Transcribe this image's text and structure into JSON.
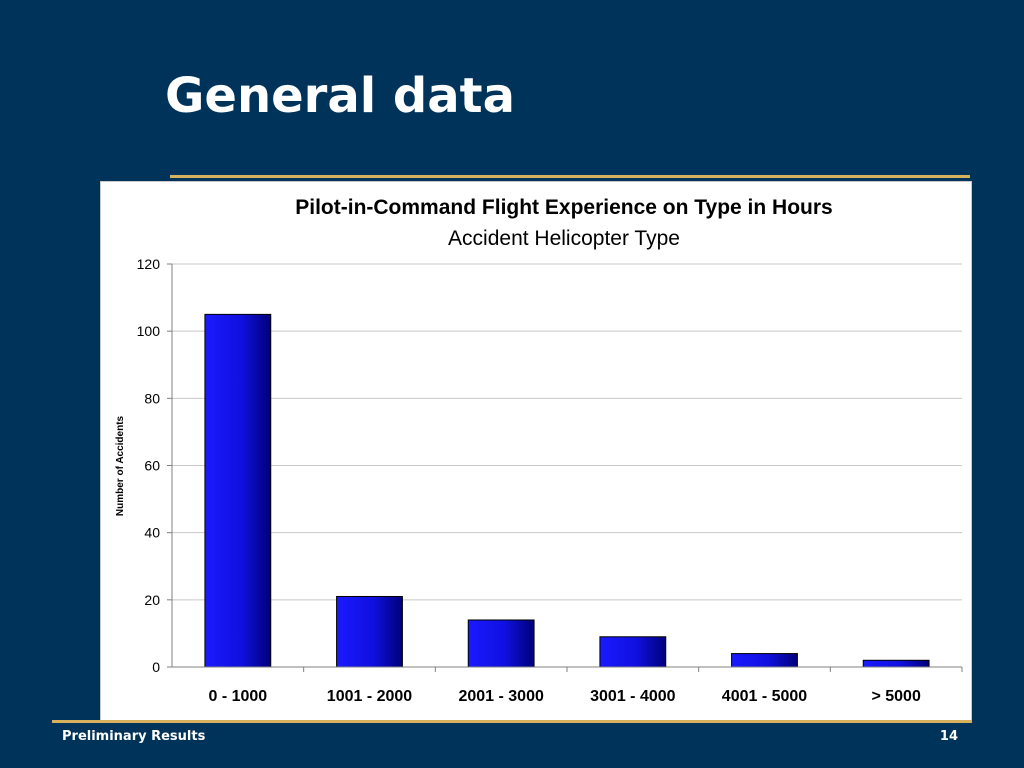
{
  "slide": {
    "title": "General data",
    "footer_left": "Preliminary Results",
    "page_number": "14"
  },
  "chart_data": {
    "type": "bar",
    "title": "Pilot-in-Command Flight Experience on Type in Hours",
    "subtitle": "Accident Helicopter Type",
    "xlabel": "",
    "ylabel": "Number of Accidents",
    "categories": [
      "0 - 1000",
      "1001 - 2000",
      "2001 - 3000",
      "3001 - 4000",
      "4001 - 5000",
      "> 5000"
    ],
    "values": [
      105,
      21,
      14,
      9,
      4,
      2
    ],
    "ylim": [
      0,
      120
    ],
    "yticks": [
      0,
      20,
      40,
      60,
      80,
      100,
      120
    ],
    "grid": true,
    "legend": "none",
    "colors": {
      "bar_light": "#1a1aff",
      "bar_dark": "#00007a",
      "grid": "#c8c8c8",
      "axis": "#808080"
    }
  }
}
